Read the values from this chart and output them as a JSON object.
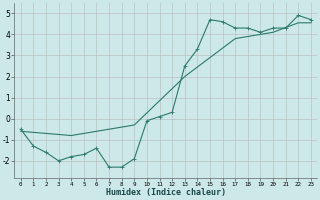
{
  "xlabel": "Humidex (Indice chaleur)",
  "bg_color": "#cce8e8",
  "grid_color": "#b8b8b8",
  "line_color": "#2a7a6a",
  "xlim": [
    -0.5,
    23.5
  ],
  "ylim": [
    -2.8,
    5.5
  ],
  "xticks": [
    0,
    1,
    2,
    3,
    4,
    5,
    6,
    7,
    8,
    9,
    10,
    11,
    12,
    13,
    14,
    15,
    16,
    17,
    18,
    19,
    20,
    21,
    22,
    23
  ],
  "yticks": [
    -2,
    -1,
    0,
    1,
    2,
    3,
    4,
    5
  ],
  "data_x": [
    0,
    1,
    2,
    3,
    4,
    5,
    6,
    7,
    8,
    9,
    10,
    11,
    12,
    13,
    14,
    15,
    16,
    17,
    18,
    19,
    20,
    21,
    22,
    23
  ],
  "data_y": [
    -0.5,
    -1.3,
    -1.6,
    -2.0,
    -1.8,
    -1.7,
    -1.4,
    -2.3,
    -2.3,
    -1.9,
    -0.1,
    0.1,
    0.3,
    2.5,
    3.3,
    4.7,
    4.6,
    4.3,
    4.3,
    4.1,
    4.3,
    4.3,
    4.9,
    4.7
  ],
  "trend_x": [
    0,
    4,
    9,
    13,
    17,
    20,
    22,
    23
  ],
  "trend_y": [
    -0.6,
    -0.8,
    -0.3,
    2.0,
    3.8,
    4.1,
    4.55,
    4.55
  ]
}
